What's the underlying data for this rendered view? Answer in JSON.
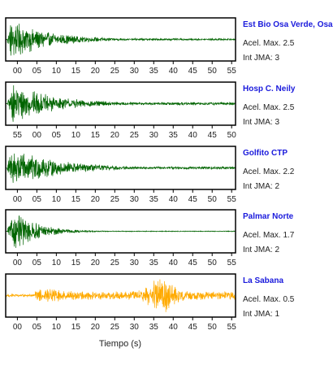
{
  "chart_data": {
    "type": "line",
    "xlabel": "Tiempo (s)",
    "ylabel": "",
    "grid": false,
    "legend": "none",
    "panels": [
      {
        "station": "Est Bio Osa Verde, Osa",
        "accel_label": "Acel. Max. 2.5",
        "jma_label": "Int JMA: 3",
        "color": "#006400",
        "xlim": [
          -3,
          56
        ],
        "onset": -2.6,
        "peak_time": -1.5,
        "decay_seconds": 10,
        "coda_level": 0.05,
        "tick_labels": [
          "00",
          "05",
          "10",
          "15",
          "20",
          "25",
          "30",
          "35",
          "40",
          "45",
          "50",
          "55"
        ],
        "tick_values": [
          0,
          5,
          10,
          15,
          20,
          25,
          30,
          35,
          40,
          45,
          50,
          55
        ]
      },
      {
        "station": "Hosp C. Neily",
        "accel_label": "Acel. Max. 2.5",
        "jma_label": "Int JMA: 3",
        "color": "#006400",
        "xlim": [
          52,
          111
        ],
        "onset": 52.5,
        "peak_time": 54,
        "decay_seconds": 11,
        "coda_level": 0.07,
        "tick_labels": [
          "55",
          "00",
          "05",
          "10",
          "15",
          "20",
          "25",
          "30",
          "35",
          "40",
          "45",
          "50"
        ],
        "tick_values": [
          55,
          60,
          65,
          70,
          75,
          80,
          85,
          90,
          95,
          100,
          105,
          110
        ]
      },
      {
        "station": "Golfito CTP",
        "accel_label": "Acel. Max. 2.2",
        "jma_label": "Int JMA: 2",
        "color": "#006400",
        "xlim": [
          -3,
          56
        ],
        "onset": -2.7,
        "peak_time": -1,
        "decay_seconds": 12,
        "coda_level": 0.06,
        "tick_labels": [
          "00",
          "05",
          "10",
          "15",
          "20",
          "25",
          "30",
          "35",
          "40",
          "45",
          "50",
          "55"
        ],
        "tick_values": [
          0,
          5,
          10,
          15,
          20,
          25,
          30,
          35,
          40,
          45,
          50,
          55
        ]
      },
      {
        "station": "Palmar Norte",
        "accel_label": "Acel. Max. 1.7",
        "jma_label": "Int JMA: 2",
        "color": "#006400",
        "xlim": [
          -3,
          56
        ],
        "onset": -2.5,
        "peak_time": -0.5,
        "decay_seconds": 6,
        "coda_level": 0.02,
        "tick_labels": [
          "00",
          "05",
          "10",
          "15",
          "20",
          "25",
          "30",
          "35",
          "40",
          "45",
          "50",
          "55"
        ],
        "tick_values": [
          0,
          5,
          10,
          15,
          20,
          25,
          30,
          35,
          40,
          45,
          50,
          55
        ]
      },
      {
        "station": "La Sabana",
        "accel_label": "Acel. Max. 0.5",
        "jma_label": "Int JMA: 1",
        "color": "#ffaa00",
        "xlim": [
          -3,
          56
        ],
        "onset": 4.6,
        "peak_time": 37,
        "decay_seconds": 0,
        "coda_level": 0.22,
        "tick_labels": [
          "00",
          "05",
          "10",
          "15",
          "20",
          "25",
          "30",
          "35",
          "40",
          "45",
          "50",
          "55"
        ],
        "tick_values": [
          0,
          5,
          10,
          15,
          20,
          25,
          30,
          35,
          40,
          45,
          50,
          55
        ]
      }
    ]
  }
}
